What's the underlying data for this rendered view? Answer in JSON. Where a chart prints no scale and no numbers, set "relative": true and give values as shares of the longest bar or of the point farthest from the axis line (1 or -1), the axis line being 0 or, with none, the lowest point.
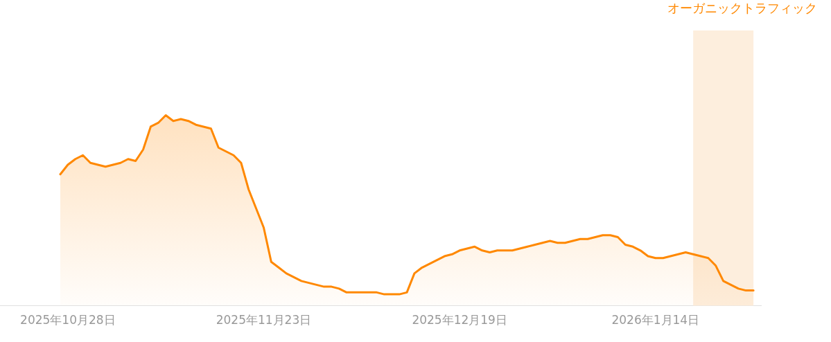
{
  "chart_data": {
    "type": "area",
    "relative": true,
    "legend": "top right",
    "marker": "none",
    "line_style": "solid",
    "xlim": [
      "2025-10-19",
      "2026-01-28"
    ],
    "xticks": [
      {
        "value": "2025-10-28",
        "label": "2025年10月28日"
      },
      {
        "value": "2025-11-23",
        "label": "2025年11月23日"
      },
      {
        "value": "2025-12-19",
        "label": "2025年12月19日"
      },
      {
        "value": "2026-01-14",
        "label": "2026年1月14日"
      }
    ],
    "bands": [
      {
        "axis": "x",
        "from": "2026-01-19",
        "to": "2026-01-27",
        "color": "#fdeedd"
      }
    ],
    "series": [
      {
        "name": "オーガニックトラフィック",
        "color": "#ff8800",
        "x": [
          "2025-10-27",
          "2025-10-28",
          "2025-10-29",
          "2025-10-30",
          "2025-10-31",
          "2025-11-01",
          "2025-11-02",
          "2025-11-03",
          "2025-11-04",
          "2025-11-05",
          "2025-11-06",
          "2025-11-07",
          "2025-11-08",
          "2025-11-09",
          "2025-11-10",
          "2025-11-11",
          "2025-11-12",
          "2025-11-13",
          "2025-11-14",
          "2025-11-15",
          "2025-11-16",
          "2025-11-17",
          "2025-11-18",
          "2025-11-19",
          "2025-11-20",
          "2025-11-21",
          "2025-11-22",
          "2025-11-23",
          "2025-11-24",
          "2025-11-25",
          "2025-11-26",
          "2025-11-27",
          "2025-11-28",
          "2025-11-29",
          "2025-11-30",
          "2025-12-01",
          "2025-12-02",
          "2025-12-03",
          "2025-12-04",
          "2025-12-05",
          "2025-12-06",
          "2025-12-07",
          "2025-12-08",
          "2025-12-09",
          "2025-12-10",
          "2025-12-11",
          "2025-12-12",
          "2025-12-13",
          "2025-12-14",
          "2025-12-15",
          "2025-12-16",
          "2025-12-17",
          "2025-12-18",
          "2025-12-19",
          "2025-12-20",
          "2025-12-21",
          "2025-12-22",
          "2025-12-23",
          "2025-12-24",
          "2025-12-25",
          "2025-12-26",
          "2025-12-27",
          "2025-12-28",
          "2025-12-29",
          "2025-12-30",
          "2025-12-31",
          "2026-01-01",
          "2026-01-02",
          "2026-01-03",
          "2026-01-04",
          "2026-01-05",
          "2026-01-06",
          "2026-01-07",
          "2026-01-08",
          "2026-01-09",
          "2026-01-10",
          "2026-01-11",
          "2026-01-12",
          "2026-01-13",
          "2026-01-14",
          "2026-01-15",
          "2026-01-16",
          "2026-01-17",
          "2026-01-18",
          "2026-01-19",
          "2026-01-20",
          "2026-01-21",
          "2026-01-22",
          "2026-01-23",
          "2026-01-24",
          "2026-01-25",
          "2026-01-26",
          "2026-01-27"
        ],
        "values": [
          0.69,
          0.74,
          0.77,
          0.79,
          0.75,
          0.74,
          0.73,
          0.74,
          0.75,
          0.77,
          0.76,
          0.82,
          0.94,
          0.96,
          1.0,
          0.97,
          0.98,
          0.97,
          0.95,
          0.94,
          0.93,
          0.83,
          0.81,
          0.79,
          0.75,
          0.61,
          0.51,
          0.41,
          0.23,
          0.2,
          0.17,
          0.15,
          0.13,
          0.12,
          0.11,
          0.1,
          0.1,
          0.09,
          0.07,
          0.07,
          0.07,
          0.07,
          0.07,
          0.06,
          0.06,
          0.06,
          0.07,
          0.17,
          0.2,
          0.22,
          0.24,
          0.26,
          0.27,
          0.29,
          0.3,
          0.31,
          0.29,
          0.28,
          0.29,
          0.29,
          0.29,
          0.3,
          0.31,
          0.32,
          0.33,
          0.34,
          0.33,
          0.33,
          0.34,
          0.35,
          0.35,
          0.36,
          0.37,
          0.37,
          0.36,
          0.32,
          0.31,
          0.29,
          0.26,
          0.25,
          0.25,
          0.26,
          0.27,
          0.28,
          0.27,
          0.26,
          0.25,
          0.21,
          0.13,
          0.11,
          0.09,
          0.08,
          0.08
        ]
      }
    ]
  }
}
